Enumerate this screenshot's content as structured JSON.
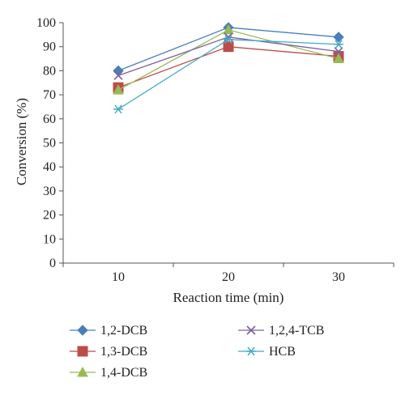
{
  "chart_data": {
    "type": "line",
    "x": [
      10,
      20,
      30
    ],
    "xlabel": "Reaction time (min)",
    "ylabel": "Conversion (%)",
    "ylim": [
      0,
      100
    ],
    "yticks": [
      0,
      10,
      20,
      30,
      40,
      50,
      60,
      70,
      80,
      90,
      100
    ],
    "xticks": [
      10,
      20,
      30
    ],
    "grid": false,
    "legend_position": "bottom",
    "series": [
      {
        "name": "1,2-DCB",
        "values": [
          80,
          98,
          94
        ],
        "color": "#4a7ebb",
        "marker": "diamond"
      },
      {
        "name": "1,3-DCB",
        "values": [
          73,
          90,
          86
        ],
        "color": "#be4b48",
        "marker": "square"
      },
      {
        "name": "1,4-DCB",
        "values": [
          72,
          97,
          85
        ],
        "color": "#98b954",
        "marker": "triangle"
      },
      {
        "name": "1,2,4-TCB",
        "values": [
          78,
          94,
          88
        ],
        "color": "#7d60a0",
        "marker": "x"
      },
      {
        "name": "HCB",
        "values": [
          64,
          93,
          91
        ],
        "color": "#46aac5",
        "marker": "star"
      }
    ]
  }
}
